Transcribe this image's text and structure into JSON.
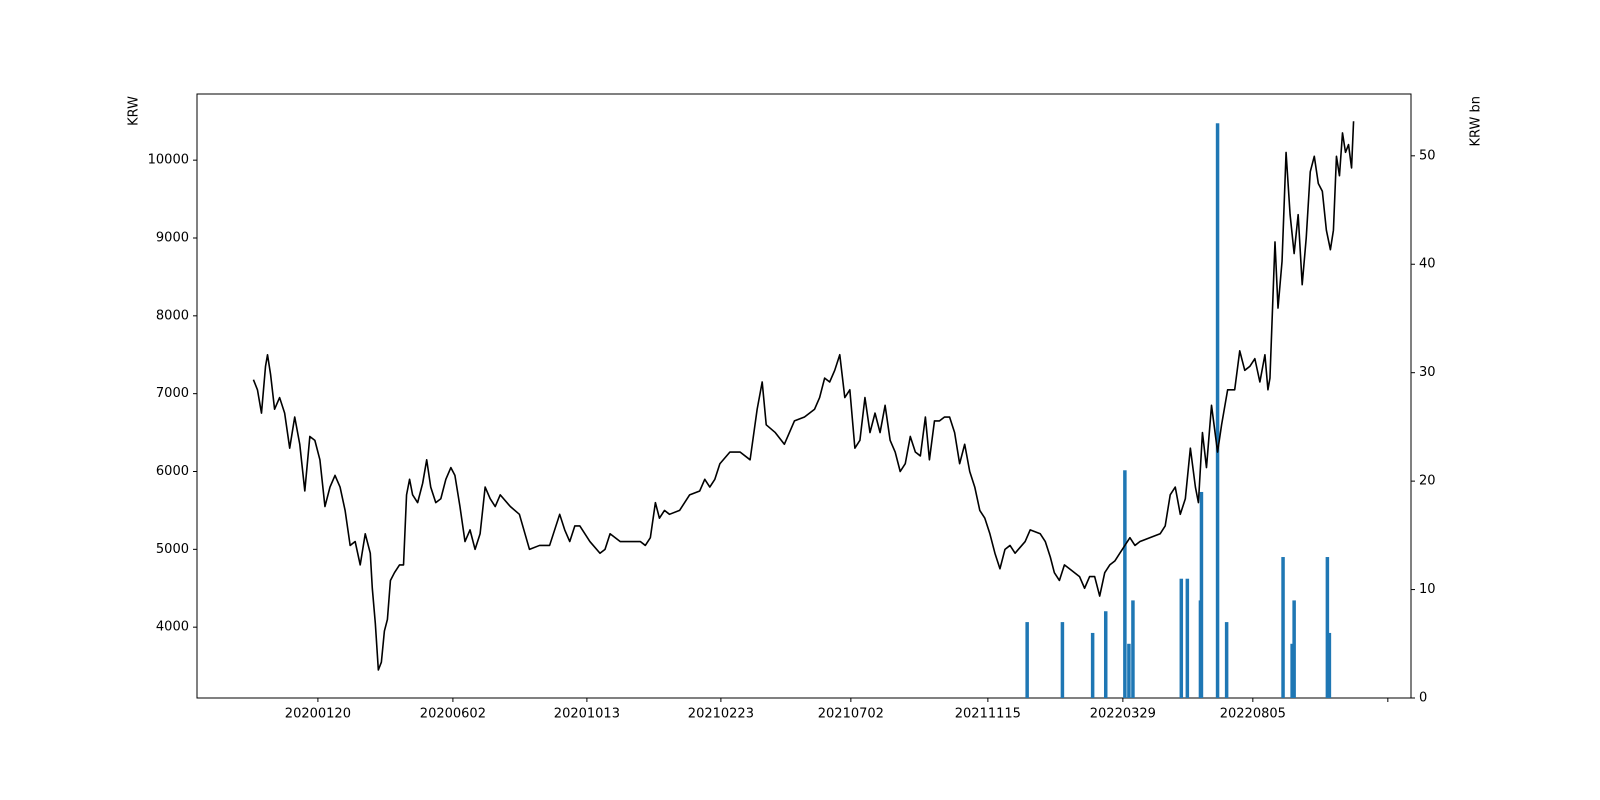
{
  "chart_data": {
    "type": "line",
    "y_label": "KRW",
    "y2_label": "KRW bn",
    "xlim": [
      "20190922",
      "20230109"
    ],
    "xticks": [
      "20200120",
      "20200602",
      "20201013",
      "20210223",
      "20210702",
      "20211115",
      "20220329",
      "20220805",
      {
        "value": "20221217",
        "label": null
      }
    ],
    "ylim": [
      3090,
      10850
    ],
    "yticks": [
      4000,
      5000,
      6000,
      7000,
      8000,
      9000,
      10000
    ],
    "y2lim": [
      0,
      55.7
    ],
    "y2ticks": [
      0,
      10,
      20,
      30,
      40,
      50
    ],
    "series": [
      {
        "type": "line",
        "color": "#000000",
        "x": [
          "20191117",
          "20191121",
          "20191125",
          "20191129",
          "20191201",
          "20191204",
          "20191208",
          "20191213",
          "20191218",
          "20191223",
          "20191228",
          "20200102",
          "20200107",
          "20200112",
          "20200117",
          "20200122",
          "20200127",
          "20200201",
          "20200206",
          "20200211",
          "20200216",
          "20200221",
          "20200226",
          "20200302",
          "20200307",
          "20200312",
          "20200314",
          "20200317",
          "20200320",
          "20200323",
          "20200326",
          "20200329",
          "20200401",
          "20200405",
          "20200410",
          "20200414",
          "20200417",
          "20200420",
          "20200423",
          "20200428",
          "20200503",
          "20200507",
          "20200511",
          "20200516",
          "20200521",
          "20200526",
          "20200531",
          "20200604",
          "20200609",
          "20200614",
          "20200619",
          "20200624",
          "20200629",
          "20200704",
          "20200709",
          "20200714",
          "20200719",
          "20200729",
          "20200807",
          "20200817",
          "20200827",
          "20200906",
          "20200916",
          "20200921",
          "20200926",
          "20201001",
          "20201006",
          "20201016",
          "20201026",
          "20201031",
          "20201105",
          "20201110",
          "20201115",
          "20201205",
          "20201210",
          "20201215",
          "20201220",
          "20201224",
          "20201229",
          "20210103",
          "20210113",
          "20210123",
          "20210202",
          "20210207",
          "20210212",
          "20210217",
          "20210222",
          "20210304",
          "20210314",
          "20210324",
          "20210331",
          "20210405",
          "20210409",
          "20210418",
          "20210427",
          "20210507",
          "20210517",
          "20210527",
          "20210601",
          "20210606",
          "20210611",
          "20210616",
          "20210621",
          "20210626",
          "20210701",
          "20210706",
          "20210711",
          "20210716",
          "20210721",
          "20210726",
          "20210731",
          "20210805",
          "20210810",
          "20210815",
          "20210820",
          "20210825",
          "20210830",
          "20210904",
          "20210909",
          "20210914",
          "20210918",
          "20210923",
          "20210928",
          "20211003",
          "20211008",
          "20211013",
          "20211018",
          "20211023",
          "20211028",
          "20211102",
          "20211107",
          "20211112",
          "20211117",
          "20211122",
          "20211127",
          "20211202",
          "20211207",
          "20211212",
          "20211222",
          "20211227",
          "20220106",
          "20220111",
          "20220116",
          "20220120",
          "20220125",
          "20220130",
          "20220204",
          "20220214",
          "20220219",
          "20220224",
          "20220301",
          "20220306",
          "20220311",
          "20220316",
          "20220321",
          "20220326",
          "20220331",
          "20220405",
          "20220410",
          "20220415",
          "20220425",
          "20220505",
          "20220510",
          "20220515",
          "20220520",
          "20220525",
          "20220530",
          "20220604",
          "20220609",
          "20220612",
          "20220616",
          "20220620",
          "20220625",
          "20220701",
          "20220705",
          "20220711",
          "20220718",
          "20220723",
          "20220728",
          "20220802",
          "20220807",
          "20220812",
          "20220817",
          "20220820",
          "20220822",
          "20220827",
          "20220830",
          "20220903",
          "20220907",
          "20220911",
          "20220915",
          "20220919",
          "20220923",
          "20220927",
          "20221001",
          "20221005",
          "20221009",
          "20221013",
          "20221017",
          "20221021",
          "20221024",
          "20221027",
          "20221030",
          "20221102",
          "20221105",
          "20221108",
          "20221111",
          "20221113"
        ],
        "values": [
          7180,
          7050,
          6750,
          7350,
          7500,
          7250,
          6800,
          6950,
          6750,
          6300,
          6700,
          6350,
          5750,
          6450,
          6400,
          6150,
          5550,
          5800,
          5950,
          5800,
          5500,
          5050,
          5100,
          4800,
          5200,
          4950,
          4500,
          4050,
          3450,
          3550,
          3950,
          4100,
          4600,
          4700,
          4800,
          4800,
          5700,
          5900,
          5700,
          5600,
          5850,
          6150,
          5800,
          5600,
          5650,
          5900,
          6050,
          5950,
          5550,
          5100,
          5250,
          5000,
          5200,
          5800,
          5650,
          5550,
          5700,
          5550,
          5450,
          5000,
          5050,
          5050,
          5450,
          5250,
          5100,
          5300,
          5300,
          5100,
          4950,
          5000,
          5200,
          5150,
          5100,
          5100,
          5050,
          5150,
          5600,
          5400,
          5500,
          5450,
          5500,
          5700,
          5750,
          5900,
          5800,
          5900,
          6100,
          6250,
          6250,
          6150,
          6800,
          7150,
          6600,
          6500,
          6350,
          6650,
          6700,
          6800,
          6950,
          7200,
          7150,
          7300,
          7500,
          6950,
          7050,
          6300,
          6400,
          6950,
          6500,
          6750,
          6500,
          6850,
          6400,
          6250,
          6000,
          6100,
          6450,
          6250,
          6200,
          6700,
          6150,
          6650,
          6650,
          6700,
          6700,
          6500,
          6100,
          6350,
          6000,
          5800,
          5500,
          5400,
          5200,
          4950,
          4750,
          5000,
          5050,
          4950,
          5100,
          5250,
          5200,
          5100,
          4900,
          4700,
          4600,
          4800,
          4750,
          4650,
          4500,
          4650,
          4650,
          4400,
          4700,
          4800,
          4850,
          4950,
          5050,
          5150,
          5050,
          5100,
          5150,
          5200,
          5300,
          5700,
          5800,
          5450,
          5650,
          6300,
          5800,
          5600,
          6500,
          6050,
          6850,
          6250,
          6600,
          7050,
          7050,
          7550,
          7300,
          7350,
          7450,
          7150,
          7500,
          7050,
          7200,
          8950,
          8100,
          8700,
          10100,
          9300,
          8800,
          9300,
          8400,
          9000,
          9850,
          10050,
          9700,
          9600,
          9100,
          8850,
          9100,
          10050,
          9800,
          10350,
          10100,
          10200,
          9900,
          10500
        ]
      },
      {
        "type": "bar",
        "axis": "y2",
        "color": "#1f77b4",
        "x": [
          "20211224",
          "20220128",
          "20220227",
          "20220312",
          "20220331",
          "20220404",
          "20220408",
          "20220526",
          "20220601",
          "20220614",
          "20220615",
          "20220701",
          "20220710",
          "20220904",
          "20220913",
          "20220915",
          "20221018",
          "20221020"
        ],
        "values": [
          7,
          7,
          6,
          8,
          21,
          5,
          9,
          11,
          11,
          9,
          19,
          53,
          7,
          13,
          5,
          9,
          13,
          6
        ]
      }
    ]
  }
}
